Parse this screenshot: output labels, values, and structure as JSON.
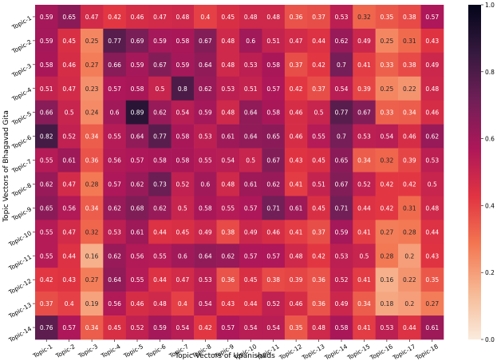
{
  "chart_data": {
    "type": "heatmap",
    "xlabel": "Topic Vectors of Upanishads",
    "ylabel": "Topic Vectors of Bhagavad Gita",
    "x_categories": [
      "Topic-1",
      "Topic-2",
      "Topic-3",
      "Topic-4",
      "Topic-5",
      "Topic-6",
      "Topic-7",
      "Topic-8",
      "Topic-9",
      "Topic-10",
      "Topic-11",
      "Topic-12",
      "Topic-13",
      "Topic-14",
      "Topic-15",
      "Topic-16",
      "Topic-17",
      "Topic-18"
    ],
    "y_categories": [
      "Topic-1",
      "Topic-2",
      "Topic-3",
      "Topic-4",
      "Topic-5",
      "Topic-6",
      "Topic-7",
      "Topic-8",
      "Topic-9",
      "Topic-10",
      "Topic-11",
      "Topic-12",
      "Topic-13",
      "Topic-14"
    ],
    "values": [
      [
        0.59,
        0.65,
        0.47,
        0.42,
        0.46,
        0.47,
        0.48,
        0.4,
        0.45,
        0.48,
        0.48,
        0.36,
        0.37,
        0.53,
        0.32,
        0.35,
        0.38,
        0.57
      ],
      [
        0.59,
        0.45,
        0.25,
        0.77,
        0.69,
        0.59,
        0.58,
        0.67,
        0.48,
        0.6,
        0.51,
        0.47,
        0.44,
        0.62,
        0.49,
        0.25,
        0.31,
        0.43
      ],
      [
        0.58,
        0.46,
        0.27,
        0.66,
        0.59,
        0.67,
        0.59,
        0.64,
        0.48,
        0.53,
        0.58,
        0.37,
        0.42,
        0.7,
        0.41,
        0.33,
        0.38,
        0.49
      ],
      [
        0.51,
        0.47,
        0.23,
        0.57,
        0.58,
        0.5,
        0.8,
        0.62,
        0.53,
        0.51,
        0.57,
        0.42,
        0.37,
        0.54,
        0.39,
        0.25,
        0.22,
        0.48
      ],
      [
        0.66,
        0.5,
        0.24,
        0.6,
        0.89,
        0.62,
        0.54,
        0.59,
        0.48,
        0.64,
        0.58,
        0.46,
        0.5,
        0.77,
        0.67,
        0.33,
        0.34,
        0.46
      ],
      [
        0.82,
        0.52,
        0.34,
        0.55,
        0.64,
        0.77,
        0.58,
        0.53,
        0.61,
        0.64,
        0.65,
        0.46,
        0.55,
        0.7,
        0.53,
        0.54,
        0.46,
        0.62
      ],
      [
        0.55,
        0.61,
        0.36,
        0.56,
        0.57,
        0.58,
        0.58,
        0.55,
        0.54,
        0.5,
        0.67,
        0.43,
        0.45,
        0.65,
        0.34,
        0.32,
        0.39,
        0.53
      ],
      [
        0.62,
        0.47,
        0.28,
        0.57,
        0.62,
        0.73,
        0.52,
        0.6,
        0.48,
        0.61,
        0.62,
        0.41,
        0.51,
        0.67,
        0.52,
        0.42,
        0.42,
        0.5
      ],
      [
        0.65,
        0.56,
        0.34,
        0.62,
        0.68,
        0.62,
        0.5,
        0.58,
        0.55,
        0.57,
        0.71,
        0.61,
        0.45,
        0.71,
        0.44,
        0.42,
        0.31,
        0.48
      ],
      [
        0.55,
        0.47,
        0.32,
        0.53,
        0.61,
        0.44,
        0.45,
        0.49,
        0.38,
        0.49,
        0.46,
        0.41,
        0.37,
        0.59,
        0.41,
        0.27,
        0.28,
        0.44
      ],
      [
        0.55,
        0.44,
        0.16,
        0.62,
        0.56,
        0.55,
        0.6,
        0.64,
        0.62,
        0.57,
        0.57,
        0.48,
        0.42,
        0.53,
        0.5,
        0.28,
        0.2,
        0.43
      ],
      [
        0.42,
        0.43,
        0.27,
        0.64,
        0.55,
        0.44,
        0.47,
        0.53,
        0.36,
        0.45,
        0.38,
        0.39,
        0.36,
        0.52,
        0.41,
        0.16,
        0.22,
        0.35
      ],
      [
        0.37,
        0.4,
        0.19,
        0.56,
        0.46,
        0.48,
        0.4,
        0.54,
        0.43,
        0.44,
        0.52,
        0.46,
        0.36,
        0.49,
        0.34,
        0.18,
        0.2,
        0.27
      ],
      [
        0.76,
        0.57,
        0.34,
        0.45,
        0.52,
        0.59,
        0.54,
        0.42,
        0.57,
        0.54,
        0.54,
        0.35,
        0.48,
        0.58,
        0.41,
        0.53,
        0.44,
        0.61
      ]
    ],
    "vmin": 0.0,
    "vmax": 1.0,
    "colorbar_ticks": [
      "0.0",
      "0.2",
      "0.4",
      "0.6",
      "0.8",
      "1.0"
    ],
    "colormap": [
      "#faebdd",
      "#f6b893",
      "#f37651",
      "#e13342",
      "#ad1759",
      "#701f57",
      "#35193e",
      "#03051a"
    ]
  }
}
